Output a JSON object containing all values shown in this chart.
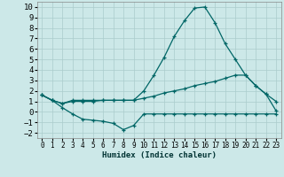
{
  "xlabel": "Humidex (Indice chaleur)",
  "bg_color": "#cce8e8",
  "grid_color": "#aacccc",
  "line_color": "#006666",
  "ylim": [
    -2.5,
    10.5
  ],
  "xlim": [
    -0.5,
    23.5
  ],
  "yticks": [
    -2,
    -1,
    0,
    1,
    2,
    3,
    4,
    5,
    6,
    7,
    8,
    9,
    10
  ],
  "xticks": [
    0,
    1,
    2,
    3,
    4,
    5,
    6,
    7,
    8,
    9,
    10,
    11,
    12,
    13,
    14,
    15,
    16,
    17,
    18,
    19,
    20,
    21,
    22,
    23
  ],
  "line1_x": [
    0,
    1,
    2,
    3,
    4,
    5,
    6,
    7,
    8,
    9,
    10,
    11,
    12,
    13,
    14,
    15,
    16,
    17,
    18,
    19,
    20,
    21,
    22,
    23
  ],
  "line1_y": [
    1.6,
    1.1,
    0.8,
    1.1,
    1.1,
    1.1,
    1.1,
    1.1,
    1.1,
    1.1,
    2.0,
    3.5,
    5.2,
    7.2,
    8.7,
    9.9,
    10.0,
    8.5,
    6.5,
    5.0,
    3.5,
    2.5,
    1.7,
    1.0
  ],
  "line2_x": [
    0,
    1,
    2,
    3,
    4,
    5,
    6,
    7,
    8,
    9,
    10,
    11,
    12,
    13,
    14,
    15,
    16,
    17,
    18,
    19,
    20,
    21,
    22,
    23
  ],
  "line2_y": [
    1.6,
    1.1,
    0.8,
    1.0,
    1.0,
    1.0,
    1.1,
    1.1,
    1.1,
    1.1,
    1.3,
    1.5,
    1.8,
    2.0,
    2.2,
    2.5,
    2.7,
    2.9,
    3.2,
    3.5,
    3.5,
    2.5,
    1.7,
    0.1
  ],
  "line3_x": [
    0,
    1,
    2,
    3,
    4,
    5,
    6,
    7,
    8,
    9,
    10,
    11,
    12,
    13,
    14,
    15,
    16,
    17,
    18,
    19,
    20,
    21,
    22,
    23
  ],
  "line3_y": [
    1.6,
    1.1,
    0.4,
    -0.2,
    -0.7,
    -0.8,
    -0.9,
    -1.1,
    -1.7,
    -1.3,
    -0.2,
    -0.2,
    -0.2,
    -0.2,
    -0.2,
    -0.2,
    -0.2,
    -0.2,
    -0.2,
    -0.2,
    -0.2,
    -0.2,
    -0.2,
    -0.2
  ],
  "xlabel_fontsize": 6.5,
  "ytick_fontsize": 6.5,
  "xtick_fontsize": 5.5,
  "line_width": 0.9,
  "marker_size": 3.5
}
